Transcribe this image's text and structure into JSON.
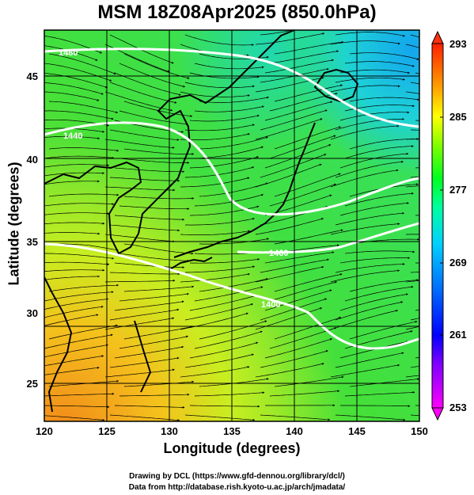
{
  "title": "MSM 18Z08Apr2025 (850.0hPa)",
  "xlabel": "Longitude (degrees)",
  "ylabel": "Latitude  (degrees)",
  "credits": [
    "Drawing by DCL (https://www.gfd-dennou.org/library/dcl/)",
    "Data from http://database.rish.kyoto-u.ac.jp/arch/jmadata/"
  ],
  "x_ticks": [
    "120",
    "125",
    "130",
    "135",
    "140",
    "145",
    "150"
  ],
  "y_ticks": [
    "25",
    "30",
    "35",
    "40",
    "45"
  ],
  "colorbar": {
    "ticks": [
      "293",
      "285",
      "277",
      "269",
      "261",
      "253"
    ],
    "min": 253,
    "max": 293,
    "colors": [
      "#ff00ff",
      "#8000ff",
      "#0000ff",
      "#0060ff",
      "#00c0ff",
      "#00ffc0",
      "#00ff40",
      "#40ff00",
      "#a0ff00",
      "#ffff00",
      "#ffc000",
      "#ff8000",
      "#ff4000"
    ]
  },
  "map": {
    "lon_range": [
      120,
      150
    ],
    "lat_range": [
      22.5,
      47.5
    ],
    "contour_labels": [
      "1480",
      "1440",
      "1400",
      "1460"
    ],
    "field_colors": {
      "warm": "#f2a020",
      "mid": "#38e33a",
      "cool": "#1ec8e6"
    }
  }
}
